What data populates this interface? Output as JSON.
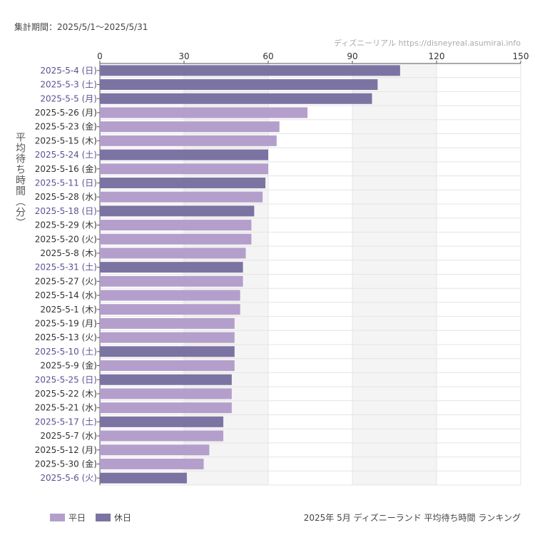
{
  "header": {
    "period": "集計期間：2025/5/1〜2025/5/31",
    "credit": "ディズニーリアル https://disneyreal.asumirai.info"
  },
  "colors": {
    "weekday": "#b49fcc",
    "holiday": "#7b74a3",
    "weekday_label": "#333333",
    "holiday_label": "#5b5293"
  },
  "chart_data": {
    "type": "bar",
    "orientation": "horizontal",
    "title": "2025年 5月 ディズニーランド 平均待ち時間 ランキング",
    "ylabel": "平均待ち時間（分）",
    "xlabel": "",
    "xlim": [
      0,
      150
    ],
    "xticks": [
      0,
      30,
      60,
      90,
      120,
      150
    ],
    "grid": true,
    "legend_position": "bottom-left",
    "legend": [
      {
        "name": "平日",
        "key": "weekday"
      },
      {
        "name": "休日",
        "key": "holiday"
      }
    ],
    "categories": [
      "2025-5-4 (日)",
      "2025-5-3 (土)",
      "2025-5-5 (月)",
      "2025-5-26 (月)",
      "2025-5-23 (金)",
      "2025-5-15 (木)",
      "2025-5-24 (土)",
      "2025-5-16 (金)",
      "2025-5-11 (日)",
      "2025-5-28 (水)",
      "2025-5-18 (日)",
      "2025-5-29 (木)",
      "2025-5-20 (火)",
      "2025-5-8 (木)",
      "2025-5-31 (土)",
      "2025-5-27 (火)",
      "2025-5-14 (水)",
      "2025-5-1 (木)",
      "2025-5-19 (月)",
      "2025-5-13 (火)",
      "2025-5-10 (土)",
      "2025-5-9 (金)",
      "2025-5-25 (日)",
      "2025-5-22 (木)",
      "2025-5-21 (水)",
      "2025-5-17 (土)",
      "2025-5-7 (水)",
      "2025-5-12 (月)",
      "2025-5-30 (金)",
      "2025-5-6 (火)"
    ],
    "values": [
      107,
      99,
      97,
      74,
      64,
      63,
      60,
      60,
      59,
      58,
      55,
      54,
      54,
      52,
      51,
      51,
      50,
      50,
      48,
      48,
      48,
      48,
      47,
      47,
      47,
      44,
      44,
      39,
      37,
      31
    ],
    "day_type": [
      "holiday",
      "holiday",
      "holiday",
      "weekday",
      "weekday",
      "weekday",
      "holiday",
      "weekday",
      "holiday",
      "weekday",
      "holiday",
      "weekday",
      "weekday",
      "weekday",
      "holiday",
      "weekday",
      "weekday",
      "weekday",
      "weekday",
      "weekday",
      "holiday",
      "weekday",
      "holiday",
      "weekday",
      "weekday",
      "holiday",
      "weekday",
      "weekday",
      "weekday",
      "holiday"
    ]
  }
}
